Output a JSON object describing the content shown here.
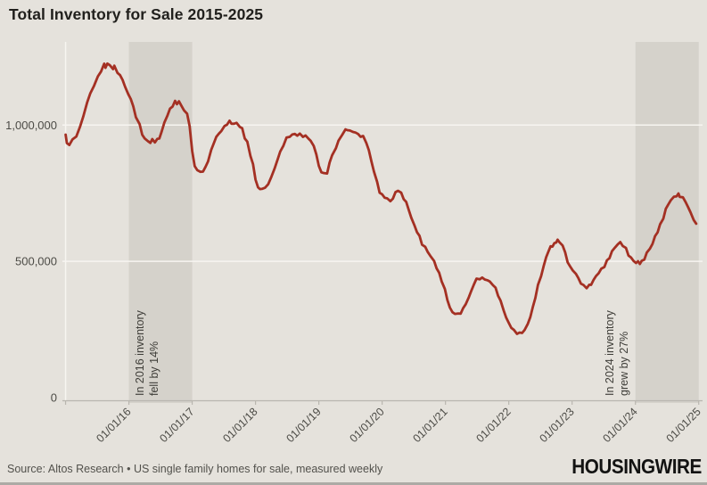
{
  "title": "Total Inventory for Sale 2015-2025",
  "footer": {
    "source": "Source: Altos Research • US single family homes for sale, measured weekly",
    "brand": "HOUSINGWIRE"
  },
  "colors": {
    "background": "#e5e2dc",
    "band": "#d5d2cb",
    "line": "#a43023",
    "grid": "#f7f5f1",
    "axis": "#b9b6af",
    "tick_text": "#4c4b46",
    "annotation_text": "#3e3d38"
  },
  "chart_data": {
    "type": "line",
    "title": "Total Inventory for Sale 2015-2025",
    "xlabel": "",
    "ylabel": "",
    "legend": "none",
    "grid": "horizontal white gridlines",
    "xlim": [
      2014.95,
      2025.06
    ],
    "ylim": [
      0,
      1305000
    ],
    "x_ticks": [
      2015,
      2016,
      2017,
      2018,
      2019,
      2020,
      2021,
      2022,
      2023,
      2024,
      2025
    ],
    "x_tick_labels": [
      "",
      "01/01/16",
      "01/01/17",
      "01/01/18",
      "01/01/19",
      "01/01/20",
      "01/01/21",
      "01/01/22",
      "01/01/23",
      "01/01/24",
      "01/01/25"
    ],
    "y_ticks": [
      0,
      500000,
      1000000
    ],
    "y_tick_labels": [
      "0",
      "500,000",
      "1,000,000"
    ],
    "shaded_periods": [
      {
        "start": 2016.0,
        "end": 2017.0,
        "annotation": [
          "In 2016 inventory",
          "fell by 14%"
        ],
        "annotation_side": "inside"
      },
      {
        "start": 2024.0,
        "end": 2025.0,
        "annotation": [
          "In 2024 inventory",
          "grew by 27%"
        ],
        "annotation_side": "outside-left"
      }
    ],
    "series": [
      {
        "name": "US single family homes for sale (weekly)",
        "color": "#a43023",
        "points": [
          [
            2015.0,
            965000
          ],
          [
            2015.02,
            932000
          ],
          [
            2015.06,
            930000
          ],
          [
            2015.11,
            944000
          ],
          [
            2015.17,
            962000
          ],
          [
            2015.23,
            992000
          ],
          [
            2015.28,
            1033000
          ],
          [
            2015.34,
            1082000
          ],
          [
            2015.39,
            1114000
          ],
          [
            2015.45,
            1147000
          ],
          [
            2015.51,
            1175000
          ],
          [
            2015.56,
            1200000
          ],
          [
            2015.61,
            1222000
          ],
          [
            2015.63,
            1212000
          ],
          [
            2015.66,
            1225000
          ],
          [
            2015.7,
            1218000
          ],
          [
            2015.75,
            1208000
          ],
          [
            2015.77,
            1214000
          ],
          [
            2015.82,
            1195000
          ],
          [
            2015.86,
            1180000
          ],
          [
            2015.9,
            1168000
          ],
          [
            2015.94,
            1140000
          ],
          [
            2015.99,
            1112000
          ],
          [
            2016.03,
            1098000
          ],
          [
            2016.07,
            1065000
          ],
          [
            2016.11,
            1033000
          ],
          [
            2016.17,
            1000000
          ],
          [
            2016.21,
            967000
          ],
          [
            2016.25,
            950000
          ],
          [
            2016.3,
            940000
          ],
          [
            2016.34,
            937000
          ],
          [
            2016.37,
            945000
          ],
          [
            2016.41,
            940000
          ],
          [
            2016.45,
            946000
          ],
          [
            2016.48,
            953000
          ],
          [
            2016.52,
            977000
          ],
          [
            2016.56,
            1008000
          ],
          [
            2016.61,
            1038000
          ],
          [
            2016.65,
            1057000
          ],
          [
            2016.69,
            1072000
          ],
          [
            2016.73,
            1085000
          ],
          [
            2016.76,
            1079000
          ],
          [
            2016.79,
            1086000
          ],
          [
            2016.83,
            1070000
          ],
          [
            2016.87,
            1056000
          ],
          [
            2016.92,
            1038000
          ],
          [
            2016.96,
            1000000
          ],
          [
            2017.0,
            900000
          ],
          [
            2017.04,
            852000
          ],
          [
            2017.08,
            833000
          ],
          [
            2017.13,
            828000
          ],
          [
            2017.17,
            831000
          ],
          [
            2017.21,
            843000
          ],
          [
            2017.25,
            870000
          ],
          [
            2017.3,
            905000
          ],
          [
            2017.34,
            935000
          ],
          [
            2017.38,
            955000
          ],
          [
            2017.42,
            968000
          ],
          [
            2017.46,
            980000
          ],
          [
            2017.51,
            993000
          ],
          [
            2017.55,
            1005000
          ],
          [
            2017.59,
            1012000
          ],
          [
            2017.62,
            1008000
          ],
          [
            2017.66,
            1003000
          ],
          [
            2017.7,
            1008000
          ],
          [
            2017.75,
            995000
          ],
          [
            2017.79,
            985000
          ],
          [
            2017.83,
            955000
          ],
          [
            2017.87,
            935000
          ],
          [
            2017.92,
            890000
          ],
          [
            2017.96,
            855000
          ],
          [
            2018.0,
            800000
          ],
          [
            2018.04,
            773000
          ],
          [
            2018.07,
            762000
          ],
          [
            2018.11,
            770000
          ],
          [
            2018.15,
            766000
          ],
          [
            2018.2,
            786000
          ],
          [
            2018.25,
            808000
          ],
          [
            2018.3,
            840000
          ],
          [
            2018.35,
            876000
          ],
          [
            2018.39,
            900000
          ],
          [
            2018.44,
            928000
          ],
          [
            2018.49,
            950000
          ],
          [
            2018.54,
            960000
          ],
          [
            2018.58,
            963000
          ],
          [
            2018.62,
            968000
          ],
          [
            2018.66,
            962000
          ],
          [
            2018.7,
            966000
          ],
          [
            2018.75,
            960000
          ],
          [
            2018.79,
            958000
          ],
          [
            2018.83,
            955000
          ],
          [
            2018.87,
            940000
          ],
          [
            2018.92,
            924000
          ],
          [
            2018.96,
            893000
          ],
          [
            2019.0,
            848000
          ],
          [
            2019.04,
            830000
          ],
          [
            2019.08,
            820000
          ],
          [
            2019.13,
            826000
          ],
          [
            2019.17,
            860000
          ],
          [
            2019.21,
            890000
          ],
          [
            2019.27,
            916000
          ],
          [
            2019.31,
            940000
          ],
          [
            2019.37,
            968000
          ],
          [
            2019.42,
            980000
          ],
          [
            2019.45,
            985000
          ],
          [
            2019.49,
            977000
          ],
          [
            2019.54,
            976000
          ],
          [
            2019.58,
            973000
          ],
          [
            2019.62,
            965000
          ],
          [
            2019.66,
            960000
          ],
          [
            2019.7,
            956000
          ],
          [
            2019.75,
            938000
          ],
          [
            2019.79,
            905000
          ],
          [
            2019.83,
            868000
          ],
          [
            2019.87,
            830000
          ],
          [
            2019.92,
            790000
          ],
          [
            2019.96,
            755000
          ],
          [
            2020.0,
            742000
          ],
          [
            2020.04,
            737000
          ],
          [
            2020.08,
            728000
          ],
          [
            2020.13,
            722000
          ],
          [
            2020.17,
            730000
          ],
          [
            2020.21,
            752000
          ],
          [
            2020.25,
            762000
          ],
          [
            2020.3,
            748000
          ],
          [
            2020.34,
            732000
          ],
          [
            2020.38,
            715000
          ],
          [
            2020.42,
            690000
          ],
          [
            2020.46,
            660000
          ],
          [
            2020.51,
            630000
          ],
          [
            2020.55,
            610000
          ],
          [
            2020.59,
            590000
          ],
          [
            2020.63,
            565000
          ],
          [
            2020.68,
            550000
          ],
          [
            2020.72,
            536000
          ],
          [
            2020.76,
            520000
          ],
          [
            2020.82,
            500000
          ],
          [
            2020.86,
            477000
          ],
          [
            2020.9,
            454000
          ],
          [
            2020.94,
            430000
          ],
          [
            2020.99,
            395000
          ],
          [
            2021.03,
            360000
          ],
          [
            2021.07,
            330000
          ],
          [
            2021.11,
            312000
          ],
          [
            2021.15,
            310000
          ],
          [
            2021.2,
            305000
          ],
          [
            2021.24,
            312000
          ],
          [
            2021.28,
            325000
          ],
          [
            2021.32,
            345000
          ],
          [
            2021.37,
            368000
          ],
          [
            2021.41,
            392000
          ],
          [
            2021.45,
            418000
          ],
          [
            2021.49,
            433000
          ],
          [
            2021.54,
            438000
          ],
          [
            2021.58,
            437000
          ],
          [
            2021.62,
            436000
          ],
          [
            2021.66,
            430000
          ],
          [
            2021.7,
            425000
          ],
          [
            2021.75,
            415000
          ],
          [
            2021.79,
            400000
          ],
          [
            2021.83,
            378000
          ],
          [
            2021.87,
            352000
          ],
          [
            2021.92,
            322000
          ],
          [
            2021.96,
            292000
          ],
          [
            2022.0,
            273000
          ],
          [
            2022.04,
            258000
          ],
          [
            2022.08,
            245000
          ],
          [
            2022.13,
            238000
          ],
          [
            2022.17,
            235000
          ],
          [
            2022.21,
            240000
          ],
          [
            2022.25,
            247000
          ],
          [
            2022.3,
            270000
          ],
          [
            2022.34,
            297000
          ],
          [
            2022.38,
            330000
          ],
          [
            2022.42,
            370000
          ],
          [
            2022.46,
            410000
          ],
          [
            2022.51,
            448000
          ],
          [
            2022.55,
            480000
          ],
          [
            2022.59,
            515000
          ],
          [
            2022.63,
            540000
          ],
          [
            2022.66,
            552000
          ],
          [
            2022.69,
            558000
          ],
          [
            2022.72,
            563000
          ],
          [
            2022.75,
            572000
          ],
          [
            2022.77,
            578000
          ],
          [
            2022.8,
            570000
          ],
          [
            2022.85,
            560000
          ],
          [
            2022.89,
            530000
          ],
          [
            2022.93,
            500000
          ],
          [
            2022.97,
            477000
          ],
          [
            2023.01,
            470000
          ],
          [
            2023.06,
            452000
          ],
          [
            2023.1,
            438000
          ],
          [
            2023.14,
            420000
          ],
          [
            2023.18,
            410000
          ],
          [
            2023.23,
            405000
          ],
          [
            2023.27,
            410000
          ],
          [
            2023.3,
            417000
          ],
          [
            2023.34,
            430000
          ],
          [
            2023.38,
            447000
          ],
          [
            2023.42,
            458000
          ],
          [
            2023.46,
            470000
          ],
          [
            2023.51,
            483000
          ],
          [
            2023.55,
            500000
          ],
          [
            2023.59,
            515000
          ],
          [
            2023.63,
            535000
          ],
          [
            2023.68,
            552000
          ],
          [
            2023.72,
            563000
          ],
          [
            2023.76,
            568000
          ],
          [
            2023.8,
            560000
          ],
          [
            2023.85,
            545000
          ],
          [
            2023.89,
            525000
          ],
          [
            2023.93,
            512000
          ],
          [
            2023.97,
            502000
          ],
          [
            2024.01,
            495000
          ],
          [
            2024.04,
            498000
          ],
          [
            2024.07,
            494000
          ],
          [
            2024.1,
            498000
          ],
          [
            2024.14,
            510000
          ],
          [
            2024.18,
            530000
          ],
          [
            2024.23,
            548000
          ],
          [
            2024.27,
            565000
          ],
          [
            2024.31,
            590000
          ],
          [
            2024.35,
            610000
          ],
          [
            2024.39,
            632000
          ],
          [
            2024.44,
            660000
          ],
          [
            2024.48,
            690000
          ],
          [
            2024.52,
            710000
          ],
          [
            2024.56,
            725000
          ],
          [
            2024.61,
            735000
          ],
          [
            2024.65,
            742000
          ],
          [
            2024.68,
            745000
          ],
          [
            2024.7,
            740000
          ],
          [
            2024.75,
            732000
          ],
          [
            2024.79,
            720000
          ],
          [
            2024.83,
            700000
          ],
          [
            2024.87,
            678000
          ],
          [
            2024.92,
            655000
          ],
          [
            2024.96,
            638000
          ]
        ]
      }
    ]
  }
}
